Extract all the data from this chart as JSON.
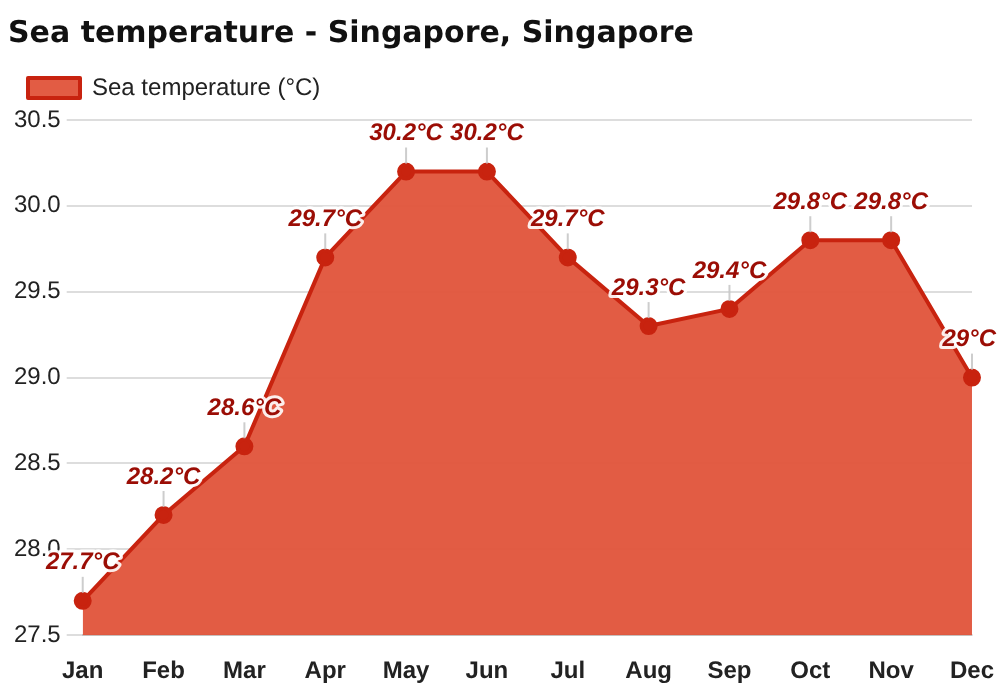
{
  "chart_data": {
    "type": "area",
    "title": "Sea temperature - Singapore, Singapore",
    "categories": [
      "Jan",
      "Feb",
      "Mar",
      "Apr",
      "May",
      "Jun",
      "Jul",
      "Aug",
      "Sep",
      "Oct",
      "Nov",
      "Dec"
    ],
    "series": [
      {
        "name": "Sea temperature (°C)",
        "color": "#e0533a",
        "values": [
          27.7,
          28.2,
          28.6,
          29.7,
          30.2,
          30.2,
          29.7,
          29.3,
          29.4,
          29.8,
          29.8,
          29.0
        ],
        "value_labels": [
          "27.7°C",
          "28.2°C",
          "28.6°C",
          "29.7°C",
          "30.2°C",
          "30.2°C",
          "29.7°C",
          "29.3°C",
          "29.4°C",
          "29.8°C",
          "29.8°C",
          "29°C"
        ]
      }
    ],
    "ylim": [
      27.5,
      30.5
    ],
    "yticks": [
      {
        "value": 27.5,
        "label": "27.5"
      },
      {
        "value": 28,
        "label": "28.0"
      },
      {
        "value": 28.5,
        "label": "28.5"
      },
      {
        "value": 29,
        "label": "29.0"
      },
      {
        "value": 29.5,
        "label": "29.5"
      },
      {
        "value": 30,
        "label": "30.0"
      },
      {
        "value": 30.5,
        "label": "30.5"
      }
    ],
    "grid": "y",
    "legend": "top left",
    "marker": "circle",
    "line_style": "solid"
  }
}
